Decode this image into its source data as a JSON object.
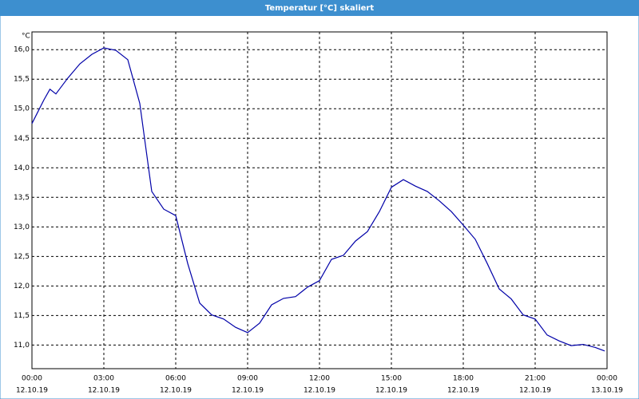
{
  "chart_data": {
    "type": "line",
    "title": "Temperatur [°C] skaliert",
    "y_label": "°C",
    "xlim": [
      0,
      24
    ],
    "ylim": [
      10.6,
      16.3
    ],
    "grid": true,
    "xticks": [
      {
        "value": 0,
        "label": "00:00",
        "date": "12.10.19"
      },
      {
        "value": 3,
        "label": "03:00",
        "date": "12.10.19"
      },
      {
        "value": 6,
        "label": "06:00",
        "date": "12.10.19"
      },
      {
        "value": 9,
        "label": "09:00",
        "date": "12.10.19"
      },
      {
        "value": 12,
        "label": "12:00",
        "date": "12.10.19"
      },
      {
        "value": 15,
        "label": "15:00",
        "date": "12.10.19"
      },
      {
        "value": 18,
        "label": "18:00",
        "date": "12.10.19"
      },
      {
        "value": 21,
        "label": "21:00",
        "date": "12.10.19"
      },
      {
        "value": 24,
        "label": "00:00",
        "date": "13.10.19"
      }
    ],
    "yticks": [
      {
        "value": 11,
        "label": "11,0"
      },
      {
        "value": 11.5,
        "label": "11,5"
      },
      {
        "value": 12,
        "label": "12,0"
      },
      {
        "value": 12.5,
        "label": "12,5"
      },
      {
        "value": 13,
        "label": "13,0"
      },
      {
        "value": 13.5,
        "label": "13,5"
      },
      {
        "value": 14,
        "label": "14,0"
      },
      {
        "value": 14.5,
        "label": "14,5"
      },
      {
        "value": 15,
        "label": "15,0"
      },
      {
        "value": 15.5,
        "label": "15,5"
      },
      {
        "value": 16,
        "label": "16,0"
      }
    ],
    "x": [
      0,
      0.5,
      0.75,
      1,
      1.5,
      2,
      2.5,
      3,
      3.5,
      4,
      4.5,
      5,
      5.5,
      6,
      6.5,
      7,
      7.5,
      8,
      8.5,
      9,
      9.5,
      10,
      10.5,
      11,
      11.5,
      12,
      12.5,
      13,
      13.5,
      14,
      14.5,
      15,
      15.5,
      16,
      16.5,
      17,
      17.5,
      18,
      18.5,
      19,
      19.5,
      20,
      20.5,
      21,
      21.5,
      22,
      22.5,
      23,
      23.5,
      23.9
    ],
    "series": [
      {
        "name": "Temperatur",
        "color": "#0000a8",
        "values": [
          14.75,
          15.15,
          15.33,
          15.25,
          15.52,
          15.76,
          15.92,
          16.03,
          15.99,
          15.83,
          15.09,
          13.6,
          13.3,
          13.19,
          12.38,
          11.71,
          11.51,
          11.44,
          11.3,
          11.21,
          11.37,
          11.68,
          11.79,
          11.82,
          11.98,
          12.09,
          12.45,
          12.52,
          12.76,
          12.92,
          13.26,
          13.67,
          13.8,
          13.69,
          13.6,
          13.44,
          13.26,
          13.03,
          12.79,
          12.38,
          11.95,
          11.78,
          11.51,
          11.44,
          11.17,
          11.07,
          10.99,
          11.01,
          10.96,
          10.9
        ]
      }
    ]
  }
}
